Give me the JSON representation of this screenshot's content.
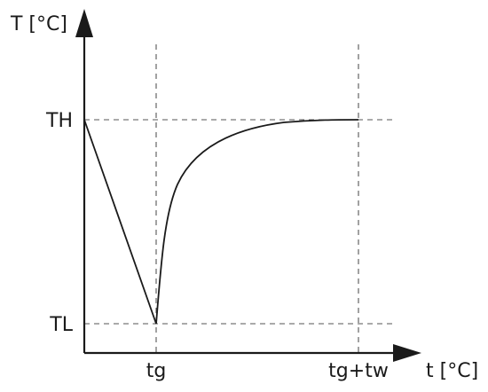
{
  "labels": {
    "y_axis": "T [°C]",
    "x_axis": "t [°C]",
    "th": "TH",
    "tl": "TL",
    "tg": "tg",
    "tg_tw": "tg+tw"
  },
  "colors": {
    "line": "#1a1a1a",
    "guide": "#555555",
    "background": "#ffffff"
  }
}
